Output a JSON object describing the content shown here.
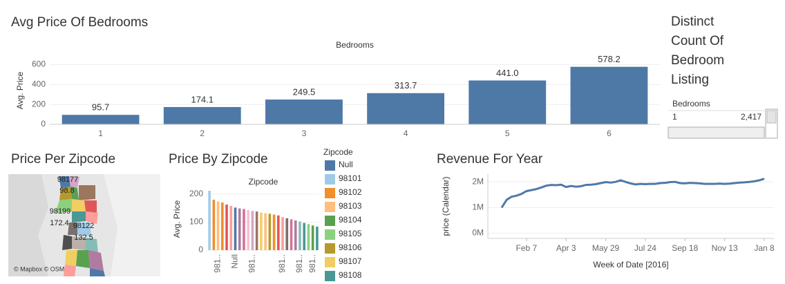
{
  "chart_data": [
    {
      "type": "bar",
      "title": "Avg Price Of Bedrooms",
      "x_header": "Bedrooms",
      "ylabel": "Avg. Price",
      "categories": [
        "1",
        "2",
        "3",
        "4",
        "5",
        "6"
      ],
      "values": [
        95.7,
        174.1,
        249.5,
        313.7,
        441.0,
        578.2
      ],
      "value_labels": [
        "95.7",
        "174.1",
        "249.5",
        "313.7",
        "441.0",
        "578.2"
      ],
      "color": "#4e79a7",
      "ylim": [
        0,
        680
      ],
      "yticks": [
        0,
        200,
        400,
        600
      ],
      "grid": true
    },
    {
      "type": "bar",
      "title": "Price By Zipcode",
      "x_header": "Zipcode",
      "ylabel": "Avg. Price",
      "categories": [
        null,
        null,
        "981..",
        null,
        null,
        null,
        "Null",
        null,
        null,
        null,
        "981..",
        null,
        null,
        null,
        null,
        null,
        null,
        "981..",
        null,
        null,
        null,
        "981..",
        null,
        null,
        "981..",
        null
      ],
      "values": [
        212,
        180,
        174,
        170,
        163,
        158,
        152,
        149,
        147,
        143,
        140,
        138,
        134,
        132,
        130,
        127,
        124,
        118,
        114,
        110,
        106,
        102,
        97,
        93,
        88,
        84
      ],
      "colors": [
        "#a0cbe8",
        "#f28e2b",
        "#ffbe7d",
        "#f28e2b",
        "#e15759",
        "#ff9d9a",
        "#4e79a7",
        "#b07aa1",
        "#d37295",
        "#fabfd2",
        "#d4a6c8",
        "#9d7660",
        "#f1ce63",
        "#ffbe7d",
        "#b6992d",
        "#f28e2b",
        "#e15759",
        "#ff9d9a",
        "#79706e",
        "#d37295",
        "#b07aa1",
        "#86bcb6",
        "#499894",
        "#8cd17d",
        "#59a14f",
        "#499894"
      ],
      "ylim": [
        0,
        222
      ],
      "yticks": [
        0,
        100,
        200
      ],
      "grid": true,
      "legend": {
        "title": "Zipcode",
        "items": [
          {
            "name": "Null",
            "color": "#4e79a7"
          },
          {
            "name": "98101",
            "color": "#a0cbe8"
          },
          {
            "name": "98102",
            "color": "#f28e2b"
          },
          {
            "name": "98103",
            "color": "#ffbe7d"
          },
          {
            "name": "98104",
            "color": "#59a14f"
          },
          {
            "name": "98105",
            "color": "#8cd17d"
          },
          {
            "name": "98106",
            "color": "#b6992d"
          },
          {
            "name": "98107",
            "color": "#f1ce63"
          },
          {
            "name": "98108",
            "color": "#499894"
          }
        ]
      }
    },
    {
      "type": "line",
      "title": "Revenue For Year",
      "ylabel": "price (Calendar)",
      "xlabel": "Week of Date [2016]",
      "x": [
        "Jan 3",
        "Jan 10",
        "Jan 17",
        "Jan 24",
        "Jan 31",
        "Feb 7",
        "Feb 14",
        "Feb 21",
        "Feb 28",
        "Mar 6",
        "Mar 13",
        "Mar 20",
        "Mar 27",
        "Apr 3",
        "Apr 10",
        "Apr 17",
        "Apr 24",
        "May 1",
        "May 8",
        "May 15",
        "May 22",
        "May 29",
        "Jun 5",
        "Jun 12",
        "Jun 19",
        "Jun 26",
        "Jul 3",
        "Jul 10",
        "Jul 17",
        "Jul 24",
        "Jul 31",
        "Aug 7",
        "Aug 14",
        "Aug 21",
        "Aug 28",
        "Sep 4",
        "Sep 11",
        "Sep 18",
        "Sep 25",
        "Oct 2",
        "Oct 9",
        "Oct 16",
        "Oct 23",
        "Oct 30",
        "Nov 6",
        "Nov 13",
        "Nov 20",
        "Nov 27",
        "Dec 4",
        "Dec 11",
        "Dec 18",
        "Dec 25",
        "Jan 1",
        "Jan 8"
      ],
      "values": [
        1000000,
        1300000,
        1420000,
        1460000,
        1530000,
        1640000,
        1680000,
        1720000,
        1780000,
        1850000,
        1880000,
        1870000,
        1890000,
        1800000,
        1840000,
        1810000,
        1830000,
        1880000,
        1890000,
        1910000,
        1950000,
        1990000,
        1970000,
        2000000,
        2060000,
        2000000,
        1940000,
        1900000,
        1920000,
        1910000,
        1920000,
        1920000,
        1950000,
        1960000,
        1990000,
        2000000,
        1950000,
        1940000,
        1960000,
        1950000,
        1940000,
        1920000,
        1920000,
        1920000,
        1930000,
        1920000,
        1930000,
        1950000,
        1970000,
        1980000,
        2000000,
        2020000,
        2060000,
        2120000
      ],
      "color": "#4e79a7",
      "xticks": [
        "Feb 7",
        "Apr 3",
        "May 29",
        "Jul 24",
        "Sep 18",
        "Nov 13",
        "Jan 8"
      ],
      "ylim": [
        -200000,
        2300000
      ],
      "yticks": [
        {
          "value": 0,
          "label": "0M"
        },
        {
          "value": 1000000,
          "label": "1M"
        },
        {
          "value": 2000000,
          "label": "2M"
        }
      ],
      "grid": true
    }
  ],
  "map": {
    "title": "Price Per Zipcode",
    "labels": [
      "98177",
      "98.8",
      "98199",
      "172.4",
      "98122",
      "132.5"
    ],
    "attribution": "© Mapbox © OSM"
  },
  "table": {
    "title": "Distinct Count Of Bedroom Listing",
    "header": "Bedrooms",
    "rows": [
      [
        "1",
        "2,417"
      ]
    ]
  }
}
